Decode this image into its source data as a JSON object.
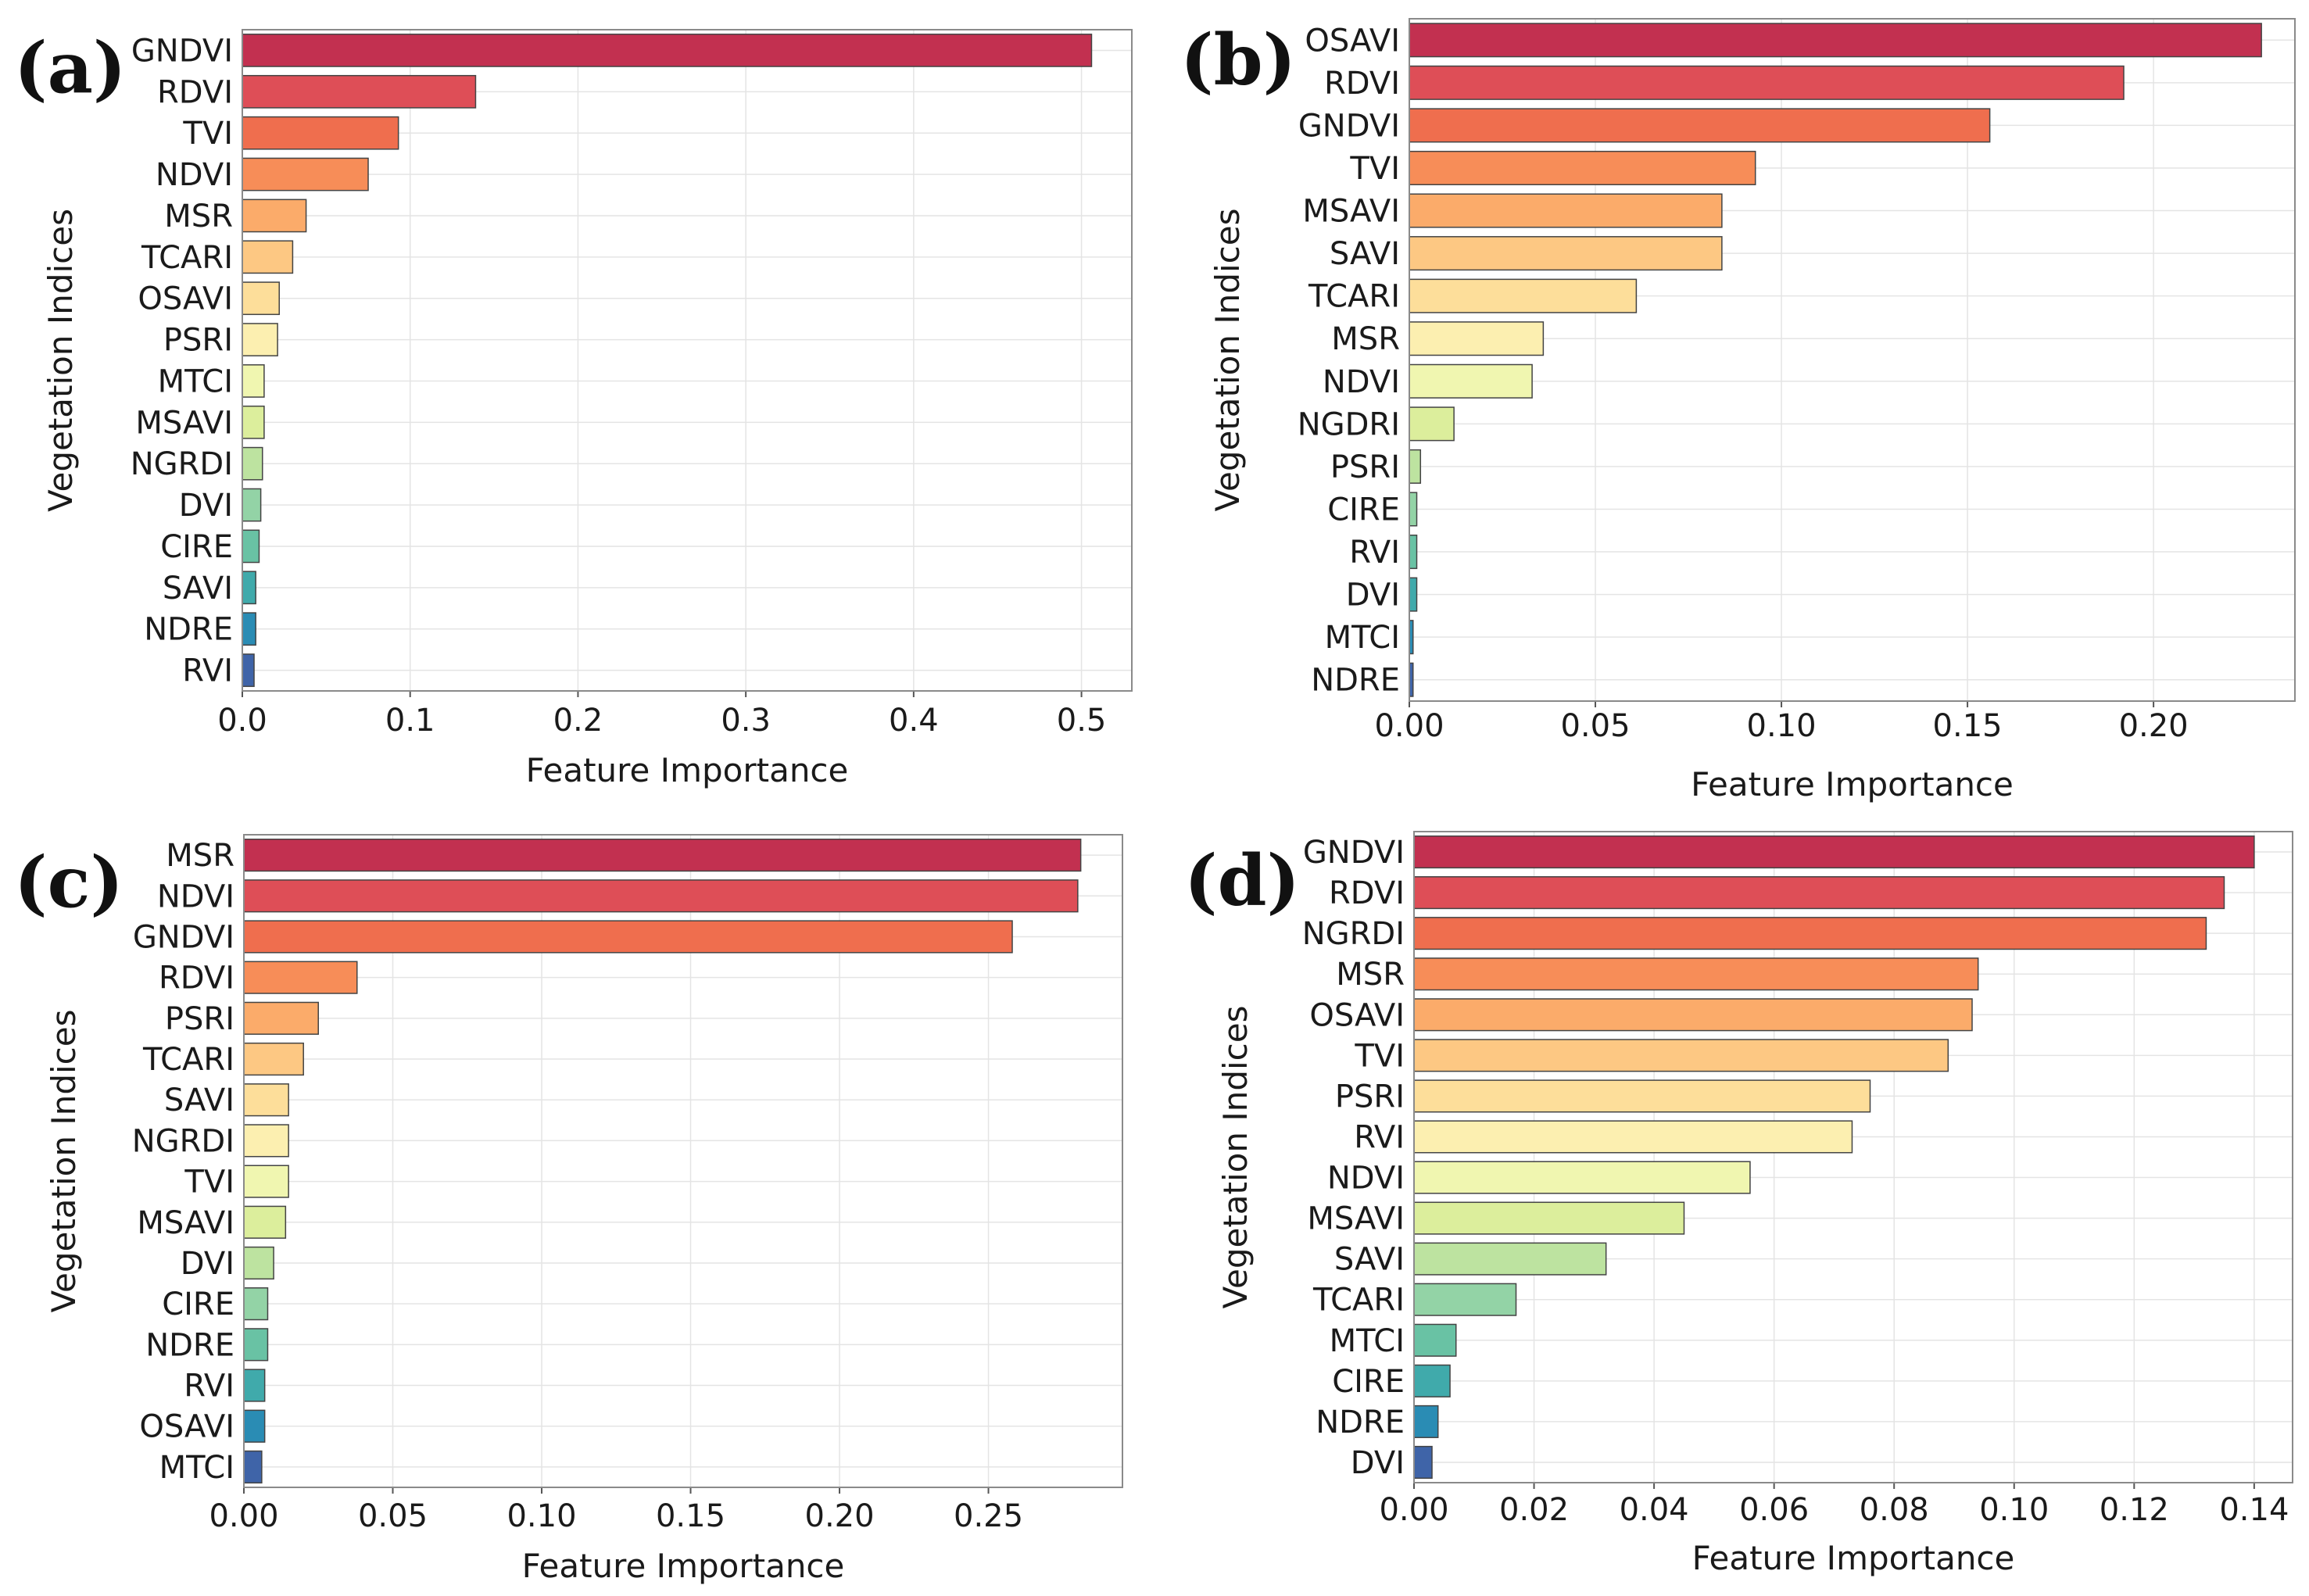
{
  "figure": {
    "panels": [
      "a",
      "b",
      "c",
      "d"
    ]
  },
  "chart_data": [
    {
      "panel_label": "(a)",
      "type": "bar",
      "orientation": "horizontal",
      "xlabel": "Feature Importance",
      "ylabel": "Vegetation Indices",
      "xlim": [
        0,
        0.53
      ],
      "xticks": [
        0.0,
        0.1,
        0.2,
        0.3,
        0.4,
        0.5
      ],
      "xtick_labels": [
        "0.0",
        "0.1",
        "0.2",
        "0.3",
        "0.4",
        "0.5"
      ],
      "categories": [
        "GNDVI",
        "RDVI",
        "TVI",
        "NDVI",
        "MSR",
        "TCARI",
        "OSAVI",
        "PSRI",
        "MTCI",
        "MSAVI",
        "NGRDI",
        "DVI",
        "CIRE",
        "SAVI",
        "NDRE",
        "RVI"
      ],
      "values": [
        0.506,
        0.139,
        0.093,
        0.075,
        0.038,
        0.03,
        0.022,
        0.021,
        0.013,
        0.013,
        0.012,
        0.011,
        0.01,
        0.008,
        0.008,
        0.007
      ]
    },
    {
      "panel_label": "(b)",
      "type": "bar",
      "orientation": "horizontal",
      "xlabel": "Feature Importance",
      "ylabel": "Vegetation Indices",
      "xlim": [
        0,
        0.238
      ],
      "xticks": [
        0.0,
        0.05,
        0.1,
        0.15,
        0.2
      ],
      "xtick_labels": [
        "0.00",
        "0.05",
        "0.10",
        "0.15",
        "0.20"
      ],
      "categories": [
        "OSAVI",
        "RDVI",
        "GNDVI",
        "TVI",
        "MSAVI",
        "SAVI",
        "TCARI",
        "MSR",
        "NDVI",
        "NGDRI",
        "PSRI",
        "CIRE",
        "RVI",
        "DVI",
        "MTCI",
        "NDRE"
      ],
      "values": [
        0.229,
        0.192,
        0.156,
        0.093,
        0.084,
        0.084,
        0.061,
        0.036,
        0.033,
        0.012,
        0.003,
        0.002,
        0.002,
        0.002,
        0.001,
        0.001
      ]
    },
    {
      "panel_label": "(c)",
      "type": "bar",
      "orientation": "horizontal",
      "xlabel": "Feature Importance",
      "ylabel": "Vegetation Indices",
      "xlim": [
        0,
        0.295
      ],
      "xticks": [
        0.0,
        0.05,
        0.1,
        0.15,
        0.2,
        0.25
      ],
      "xtick_labels": [
        "0.00",
        "0.05",
        "0.10",
        "0.15",
        "0.20",
        "0.25"
      ],
      "categories": [
        "MSR",
        "NDVI",
        "GNDVI",
        "RDVI",
        "PSRI",
        "TCARI",
        "SAVI",
        "NGRDI",
        "TVI",
        "MSAVI",
        "DVI",
        "CIRE",
        "NDRE",
        "RVI",
        "OSAVI",
        "MTCI"
      ],
      "values": [
        0.281,
        0.28,
        0.258,
        0.038,
        0.025,
        0.02,
        0.015,
        0.015,
        0.015,
        0.014,
        0.01,
        0.008,
        0.008,
        0.007,
        0.007,
        0.006
      ]
    },
    {
      "panel_label": "(d)",
      "type": "bar",
      "orientation": "horizontal",
      "xlabel": "Feature Importance",
      "ylabel": "Vegetation Indices",
      "xlim": [
        0,
        0.1464
      ],
      "xticks": [
        0.0,
        0.02,
        0.04,
        0.06,
        0.08,
        0.1,
        0.12,
        0.14
      ],
      "xtick_labels": [
        "0.00",
        "0.02",
        "0.04",
        "0.06",
        "0.08",
        "0.10",
        "0.12",
        "0.14"
      ],
      "categories": [
        "GNDVI",
        "RDVI",
        "NGRDI",
        "MSR",
        "OSAVI",
        "TVI",
        "PSRI",
        "RVI",
        "NDVI",
        "MSAVI",
        "SAVI",
        "TCARI",
        "MTCI",
        "CIRE",
        "NDRE",
        "DVI"
      ],
      "values": [
        0.14,
        0.135,
        0.132,
        0.094,
        0.093,
        0.089,
        0.076,
        0.073,
        0.056,
        0.045,
        0.032,
        0.017,
        0.007,
        0.006,
        0.004,
        0.003
      ]
    }
  ],
  "palette": [
    "#c23050",
    "#de4e57",
    "#ef6e4e",
    "#f78d58",
    "#fbab6a",
    "#fdc883",
    "#fdde9a",
    "#fcefb0",
    "#f0f6b0",
    "#dcee9c",
    "#bde3a0",
    "#93d3a6",
    "#69c2a4",
    "#40aaab",
    "#2a8cb4",
    "#3f64a8"
  ]
}
